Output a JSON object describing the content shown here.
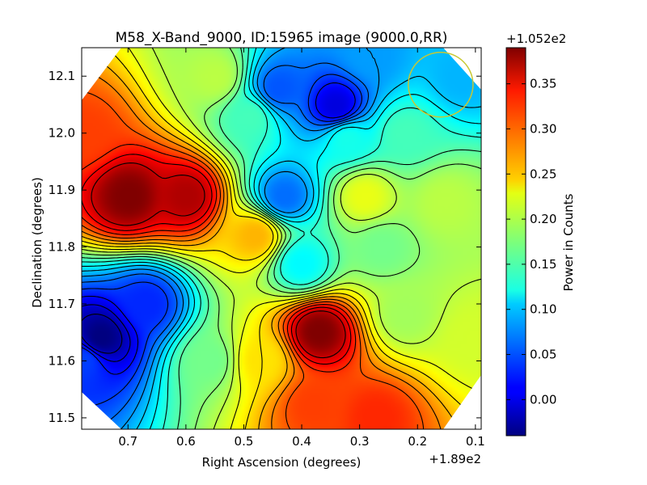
{
  "chart_data": {
    "type": "heatmap",
    "title": "M58_X-Band_9000, ID:15965 image (9000.0,RR)",
    "xlabel": "Right Ascension (degrees)",
    "ylabel": "Declination (degrees)",
    "x_offset_label": "+1.89e2",
    "xlim": [
      0.78,
      0.09
    ],
    "ylim": [
      11.48,
      12.15
    ],
    "x_ticks": [
      0.7,
      0.6,
      0.5,
      0.4,
      0.3,
      0.2,
      0.1
    ],
    "x_tick_labels": [
      "0.7",
      "0.6",
      "0.5",
      "0.4",
      "0.3",
      "0.2",
      "0.1"
    ],
    "y_ticks": [
      11.5,
      11.6,
      11.7,
      11.8,
      11.9,
      12.0,
      12.1
    ],
    "y_tick_labels": [
      "11.5",
      "11.6",
      "11.7",
      "11.8",
      "11.9",
      "12.0",
      "12.1"
    ],
    "colormap": "jet",
    "contours": true,
    "colorbar": {
      "label": "Power in Counts",
      "offset_label": "+1.052e2",
      "range": [
        -0.04,
        0.39
      ],
      "ticks": [
        0.0,
        0.05,
        0.1,
        0.15,
        0.2,
        0.25,
        0.3,
        0.35
      ],
      "tick_labels": [
        "0.00",
        "0.05",
        "0.10",
        "0.15",
        "0.20",
        "0.25",
        "0.30",
        "0.35"
      ]
    },
    "beam_marker": {
      "ra": 0.16,
      "dec": 12.085,
      "color": "#c8c832"
    },
    "sources": [
      {
        "ra": 0.75,
        "dec": 11.64,
        "value": -0.04
      },
      {
        "ra": 0.67,
        "dec": 11.7,
        "value": 0.03
      },
      {
        "ra": 0.56,
        "dec": 11.6,
        "value": 0.17
      },
      {
        "ra": 0.78,
        "dec": 11.6,
        "value": 0.04
      },
      {
        "ra": 0.7,
        "dec": 11.89,
        "value": 0.39
      },
      {
        "ra": 0.6,
        "dec": 11.89,
        "value": 0.37
      },
      {
        "ra": 0.78,
        "dec": 12.0,
        "value": 0.31
      },
      {
        "ra": 0.37,
        "dec": 11.65,
        "value": 0.39
      },
      {
        "ra": 0.38,
        "dec": 11.52,
        "value": 0.31
      },
      {
        "ra": 0.27,
        "dec": 11.5,
        "value": 0.32
      },
      {
        "ra": 0.47,
        "dec": 11.6,
        "value": 0.24
      },
      {
        "ra": 0.48,
        "dec": 11.82,
        "value": 0.26
      },
      {
        "ra": 0.55,
        "dec": 12.1,
        "value": 0.2
      },
      {
        "ra": 0.49,
        "dec": 12.03,
        "value": 0.15
      },
      {
        "ra": 0.34,
        "dec": 12.05,
        "value": 0.0
      },
      {
        "ra": 0.44,
        "dec": 12.08,
        "value": 0.05
      },
      {
        "ra": 0.28,
        "dec": 12.14,
        "value": 0.08
      },
      {
        "ra": 0.43,
        "dec": 11.89,
        "value": 0.06
      },
      {
        "ra": 0.4,
        "dec": 11.77,
        "value": 0.12
      },
      {
        "ra": 0.29,
        "dec": 11.89,
        "value": 0.22
      },
      {
        "ra": 0.15,
        "dec": 11.88,
        "value": 0.2
      },
      {
        "ra": 0.12,
        "dec": 12.1,
        "value": 0.09
      },
      {
        "ra": 0.26,
        "dec": 11.8,
        "value": 0.17
      },
      {
        "ra": 0.22,
        "dec": 11.68,
        "value": 0.19
      },
      {
        "ra": 0.1,
        "dec": 11.64,
        "value": 0.21
      },
      {
        "ra": 0.22,
        "dec": 12.0,
        "value": 0.15
      },
      {
        "ra": 0.32,
        "dec": 11.99,
        "value": 0.13
      }
    ]
  }
}
